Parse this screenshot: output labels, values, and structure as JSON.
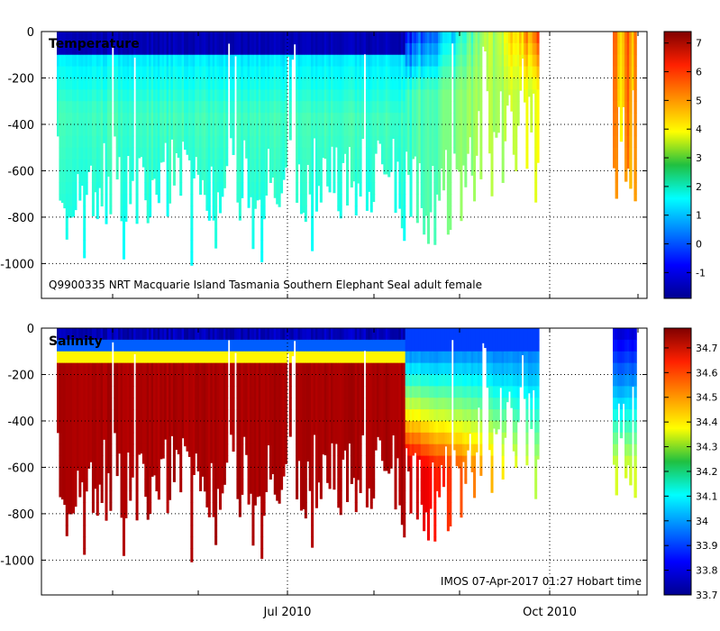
{
  "chart_data": [
    {
      "type": "heatmap",
      "title": "Temperature",
      "subtitle": "Q9900335 NRT Macquarie Island Tasmania Southern Elephant Seal adult female",
      "xlabel": "",
      "ylabel": "",
      "ylim": [
        -1150,
        0
      ],
      "y_ticks": [
        0,
        -200,
        -400,
        -600,
        -800,
        -1000
      ],
      "x_ticks": [
        "Jul 2010",
        "Oct 2010"
      ],
      "colorbar": {
        "range": [
          -1.9,
          7.4
        ],
        "ticks": [
          -1,
          0,
          1,
          2,
          3,
          4,
          5,
          6,
          7
        ]
      },
      "grid": true,
      "stations_period_1": 220,
      "stations_period_2": 10,
      "gap_label": ""
    },
    {
      "type": "heatmap",
      "title": "Salinity",
      "subtitle": "IMOS 07-Apr-2017 01:27 Hobart time",
      "xlabel": "",
      "ylabel": "",
      "ylim": [
        -1150,
        0
      ],
      "y_ticks": [
        0,
        -200,
        -400,
        -600,
        -800,
        -1000
      ],
      "x_ticks": [
        "Jul 2010",
        "Oct 2010"
      ],
      "colorbar": {
        "range": [
          33.7,
          34.78
        ],
        "ticks": [
          33.7,
          33.8,
          33.9,
          34,
          34.1,
          34.2,
          34.3,
          34.4,
          34.5,
          34.6,
          34.7
        ]
      },
      "grid": true
    }
  ]
}
